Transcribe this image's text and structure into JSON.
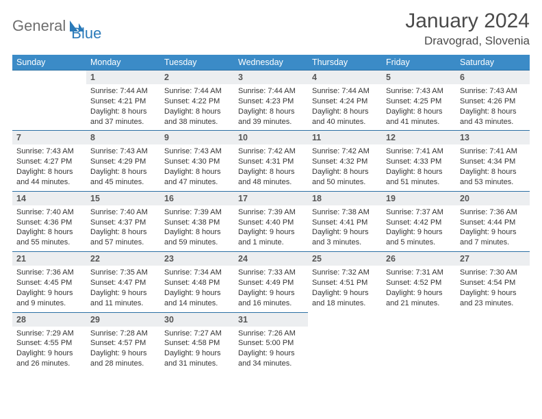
{
  "brand": {
    "part1": "General",
    "part2": "Blue"
  },
  "title": "January 2024",
  "location": "Dravograd, Slovenia",
  "colors": {
    "header_bg": "#3b8bc7",
    "header_text": "#ffffff",
    "row_border": "#2a6fa3",
    "daynum_bg": "#eceef0",
    "brand_gray": "#6e6e6e",
    "brand_blue": "#2a7ab9"
  },
  "weekdays": [
    "Sunday",
    "Monday",
    "Tuesday",
    "Wednesday",
    "Thursday",
    "Friday",
    "Saturday"
  ],
  "weeks": [
    [
      {
        "n": "",
        "sr": "",
        "ss": "",
        "dl": ""
      },
      {
        "n": "1",
        "sr": "Sunrise: 7:44 AM",
        "ss": "Sunset: 4:21 PM",
        "dl": "Daylight: 8 hours and 37 minutes."
      },
      {
        "n": "2",
        "sr": "Sunrise: 7:44 AM",
        "ss": "Sunset: 4:22 PM",
        "dl": "Daylight: 8 hours and 38 minutes."
      },
      {
        "n": "3",
        "sr": "Sunrise: 7:44 AM",
        "ss": "Sunset: 4:23 PM",
        "dl": "Daylight: 8 hours and 39 minutes."
      },
      {
        "n": "4",
        "sr": "Sunrise: 7:44 AM",
        "ss": "Sunset: 4:24 PM",
        "dl": "Daylight: 8 hours and 40 minutes."
      },
      {
        "n": "5",
        "sr": "Sunrise: 7:43 AM",
        "ss": "Sunset: 4:25 PM",
        "dl": "Daylight: 8 hours and 41 minutes."
      },
      {
        "n": "6",
        "sr": "Sunrise: 7:43 AM",
        "ss": "Sunset: 4:26 PM",
        "dl": "Daylight: 8 hours and 43 minutes."
      }
    ],
    [
      {
        "n": "7",
        "sr": "Sunrise: 7:43 AM",
        "ss": "Sunset: 4:27 PM",
        "dl": "Daylight: 8 hours and 44 minutes."
      },
      {
        "n": "8",
        "sr": "Sunrise: 7:43 AM",
        "ss": "Sunset: 4:29 PM",
        "dl": "Daylight: 8 hours and 45 minutes."
      },
      {
        "n": "9",
        "sr": "Sunrise: 7:43 AM",
        "ss": "Sunset: 4:30 PM",
        "dl": "Daylight: 8 hours and 47 minutes."
      },
      {
        "n": "10",
        "sr": "Sunrise: 7:42 AM",
        "ss": "Sunset: 4:31 PM",
        "dl": "Daylight: 8 hours and 48 minutes."
      },
      {
        "n": "11",
        "sr": "Sunrise: 7:42 AM",
        "ss": "Sunset: 4:32 PM",
        "dl": "Daylight: 8 hours and 50 minutes."
      },
      {
        "n": "12",
        "sr": "Sunrise: 7:41 AM",
        "ss": "Sunset: 4:33 PM",
        "dl": "Daylight: 8 hours and 51 minutes."
      },
      {
        "n": "13",
        "sr": "Sunrise: 7:41 AM",
        "ss": "Sunset: 4:34 PM",
        "dl": "Daylight: 8 hours and 53 minutes."
      }
    ],
    [
      {
        "n": "14",
        "sr": "Sunrise: 7:40 AM",
        "ss": "Sunset: 4:36 PM",
        "dl": "Daylight: 8 hours and 55 minutes."
      },
      {
        "n": "15",
        "sr": "Sunrise: 7:40 AM",
        "ss": "Sunset: 4:37 PM",
        "dl": "Daylight: 8 hours and 57 minutes."
      },
      {
        "n": "16",
        "sr": "Sunrise: 7:39 AM",
        "ss": "Sunset: 4:38 PM",
        "dl": "Daylight: 8 hours and 59 minutes."
      },
      {
        "n": "17",
        "sr": "Sunrise: 7:39 AM",
        "ss": "Sunset: 4:40 PM",
        "dl": "Daylight: 9 hours and 1 minute."
      },
      {
        "n": "18",
        "sr": "Sunrise: 7:38 AM",
        "ss": "Sunset: 4:41 PM",
        "dl": "Daylight: 9 hours and 3 minutes."
      },
      {
        "n": "19",
        "sr": "Sunrise: 7:37 AM",
        "ss": "Sunset: 4:42 PM",
        "dl": "Daylight: 9 hours and 5 minutes."
      },
      {
        "n": "20",
        "sr": "Sunrise: 7:36 AM",
        "ss": "Sunset: 4:44 PM",
        "dl": "Daylight: 9 hours and 7 minutes."
      }
    ],
    [
      {
        "n": "21",
        "sr": "Sunrise: 7:36 AM",
        "ss": "Sunset: 4:45 PM",
        "dl": "Daylight: 9 hours and 9 minutes."
      },
      {
        "n": "22",
        "sr": "Sunrise: 7:35 AM",
        "ss": "Sunset: 4:47 PM",
        "dl": "Daylight: 9 hours and 11 minutes."
      },
      {
        "n": "23",
        "sr": "Sunrise: 7:34 AM",
        "ss": "Sunset: 4:48 PM",
        "dl": "Daylight: 9 hours and 14 minutes."
      },
      {
        "n": "24",
        "sr": "Sunrise: 7:33 AM",
        "ss": "Sunset: 4:49 PM",
        "dl": "Daylight: 9 hours and 16 minutes."
      },
      {
        "n": "25",
        "sr": "Sunrise: 7:32 AM",
        "ss": "Sunset: 4:51 PM",
        "dl": "Daylight: 9 hours and 18 minutes."
      },
      {
        "n": "26",
        "sr": "Sunrise: 7:31 AM",
        "ss": "Sunset: 4:52 PM",
        "dl": "Daylight: 9 hours and 21 minutes."
      },
      {
        "n": "27",
        "sr": "Sunrise: 7:30 AM",
        "ss": "Sunset: 4:54 PM",
        "dl": "Daylight: 9 hours and 23 minutes."
      }
    ],
    [
      {
        "n": "28",
        "sr": "Sunrise: 7:29 AM",
        "ss": "Sunset: 4:55 PM",
        "dl": "Daylight: 9 hours and 26 minutes."
      },
      {
        "n": "29",
        "sr": "Sunrise: 7:28 AM",
        "ss": "Sunset: 4:57 PM",
        "dl": "Daylight: 9 hours and 28 minutes."
      },
      {
        "n": "30",
        "sr": "Sunrise: 7:27 AM",
        "ss": "Sunset: 4:58 PM",
        "dl": "Daylight: 9 hours and 31 minutes."
      },
      {
        "n": "31",
        "sr": "Sunrise: 7:26 AM",
        "ss": "Sunset: 5:00 PM",
        "dl": "Daylight: 9 hours and 34 minutes."
      },
      {
        "n": "",
        "sr": "",
        "ss": "",
        "dl": ""
      },
      {
        "n": "",
        "sr": "",
        "ss": "",
        "dl": ""
      },
      {
        "n": "",
        "sr": "",
        "ss": "",
        "dl": ""
      }
    ]
  ]
}
